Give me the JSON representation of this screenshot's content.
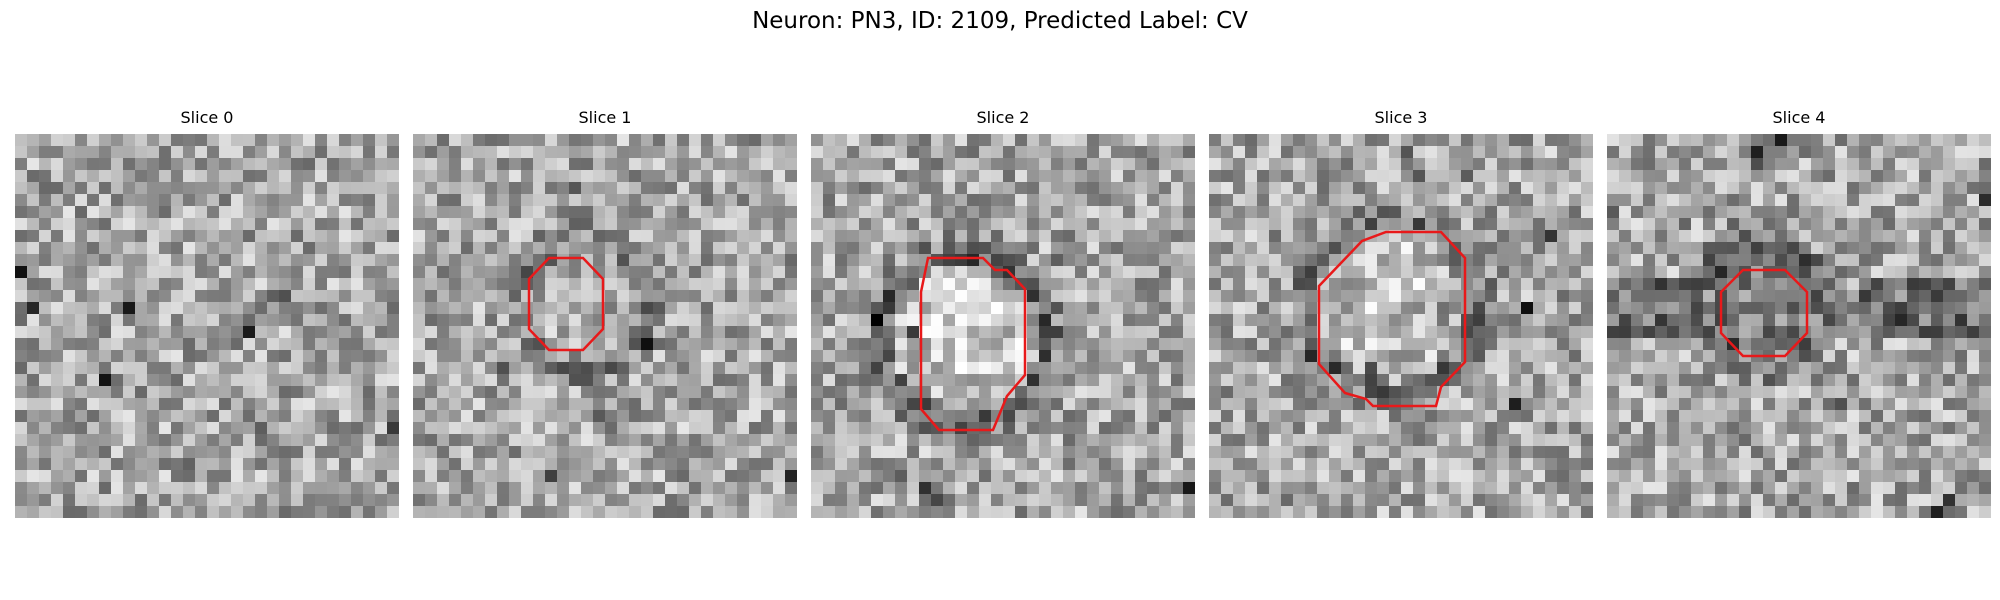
{
  "figure": {
    "title": "Neuron: PN3, ID: 2109, Predicted Label: CV"
  },
  "outline_color": "#e8191a",
  "panels": [
    {
      "title": "Slice 0",
      "has_outline": false
    },
    {
      "title": "Slice 1",
      "has_outline": true
    },
    {
      "title": "Slice 2",
      "has_outline": true
    },
    {
      "title": "Slice 3",
      "has_outline": true
    },
    {
      "title": "Slice 4",
      "has_outline": true
    }
  ]
}
